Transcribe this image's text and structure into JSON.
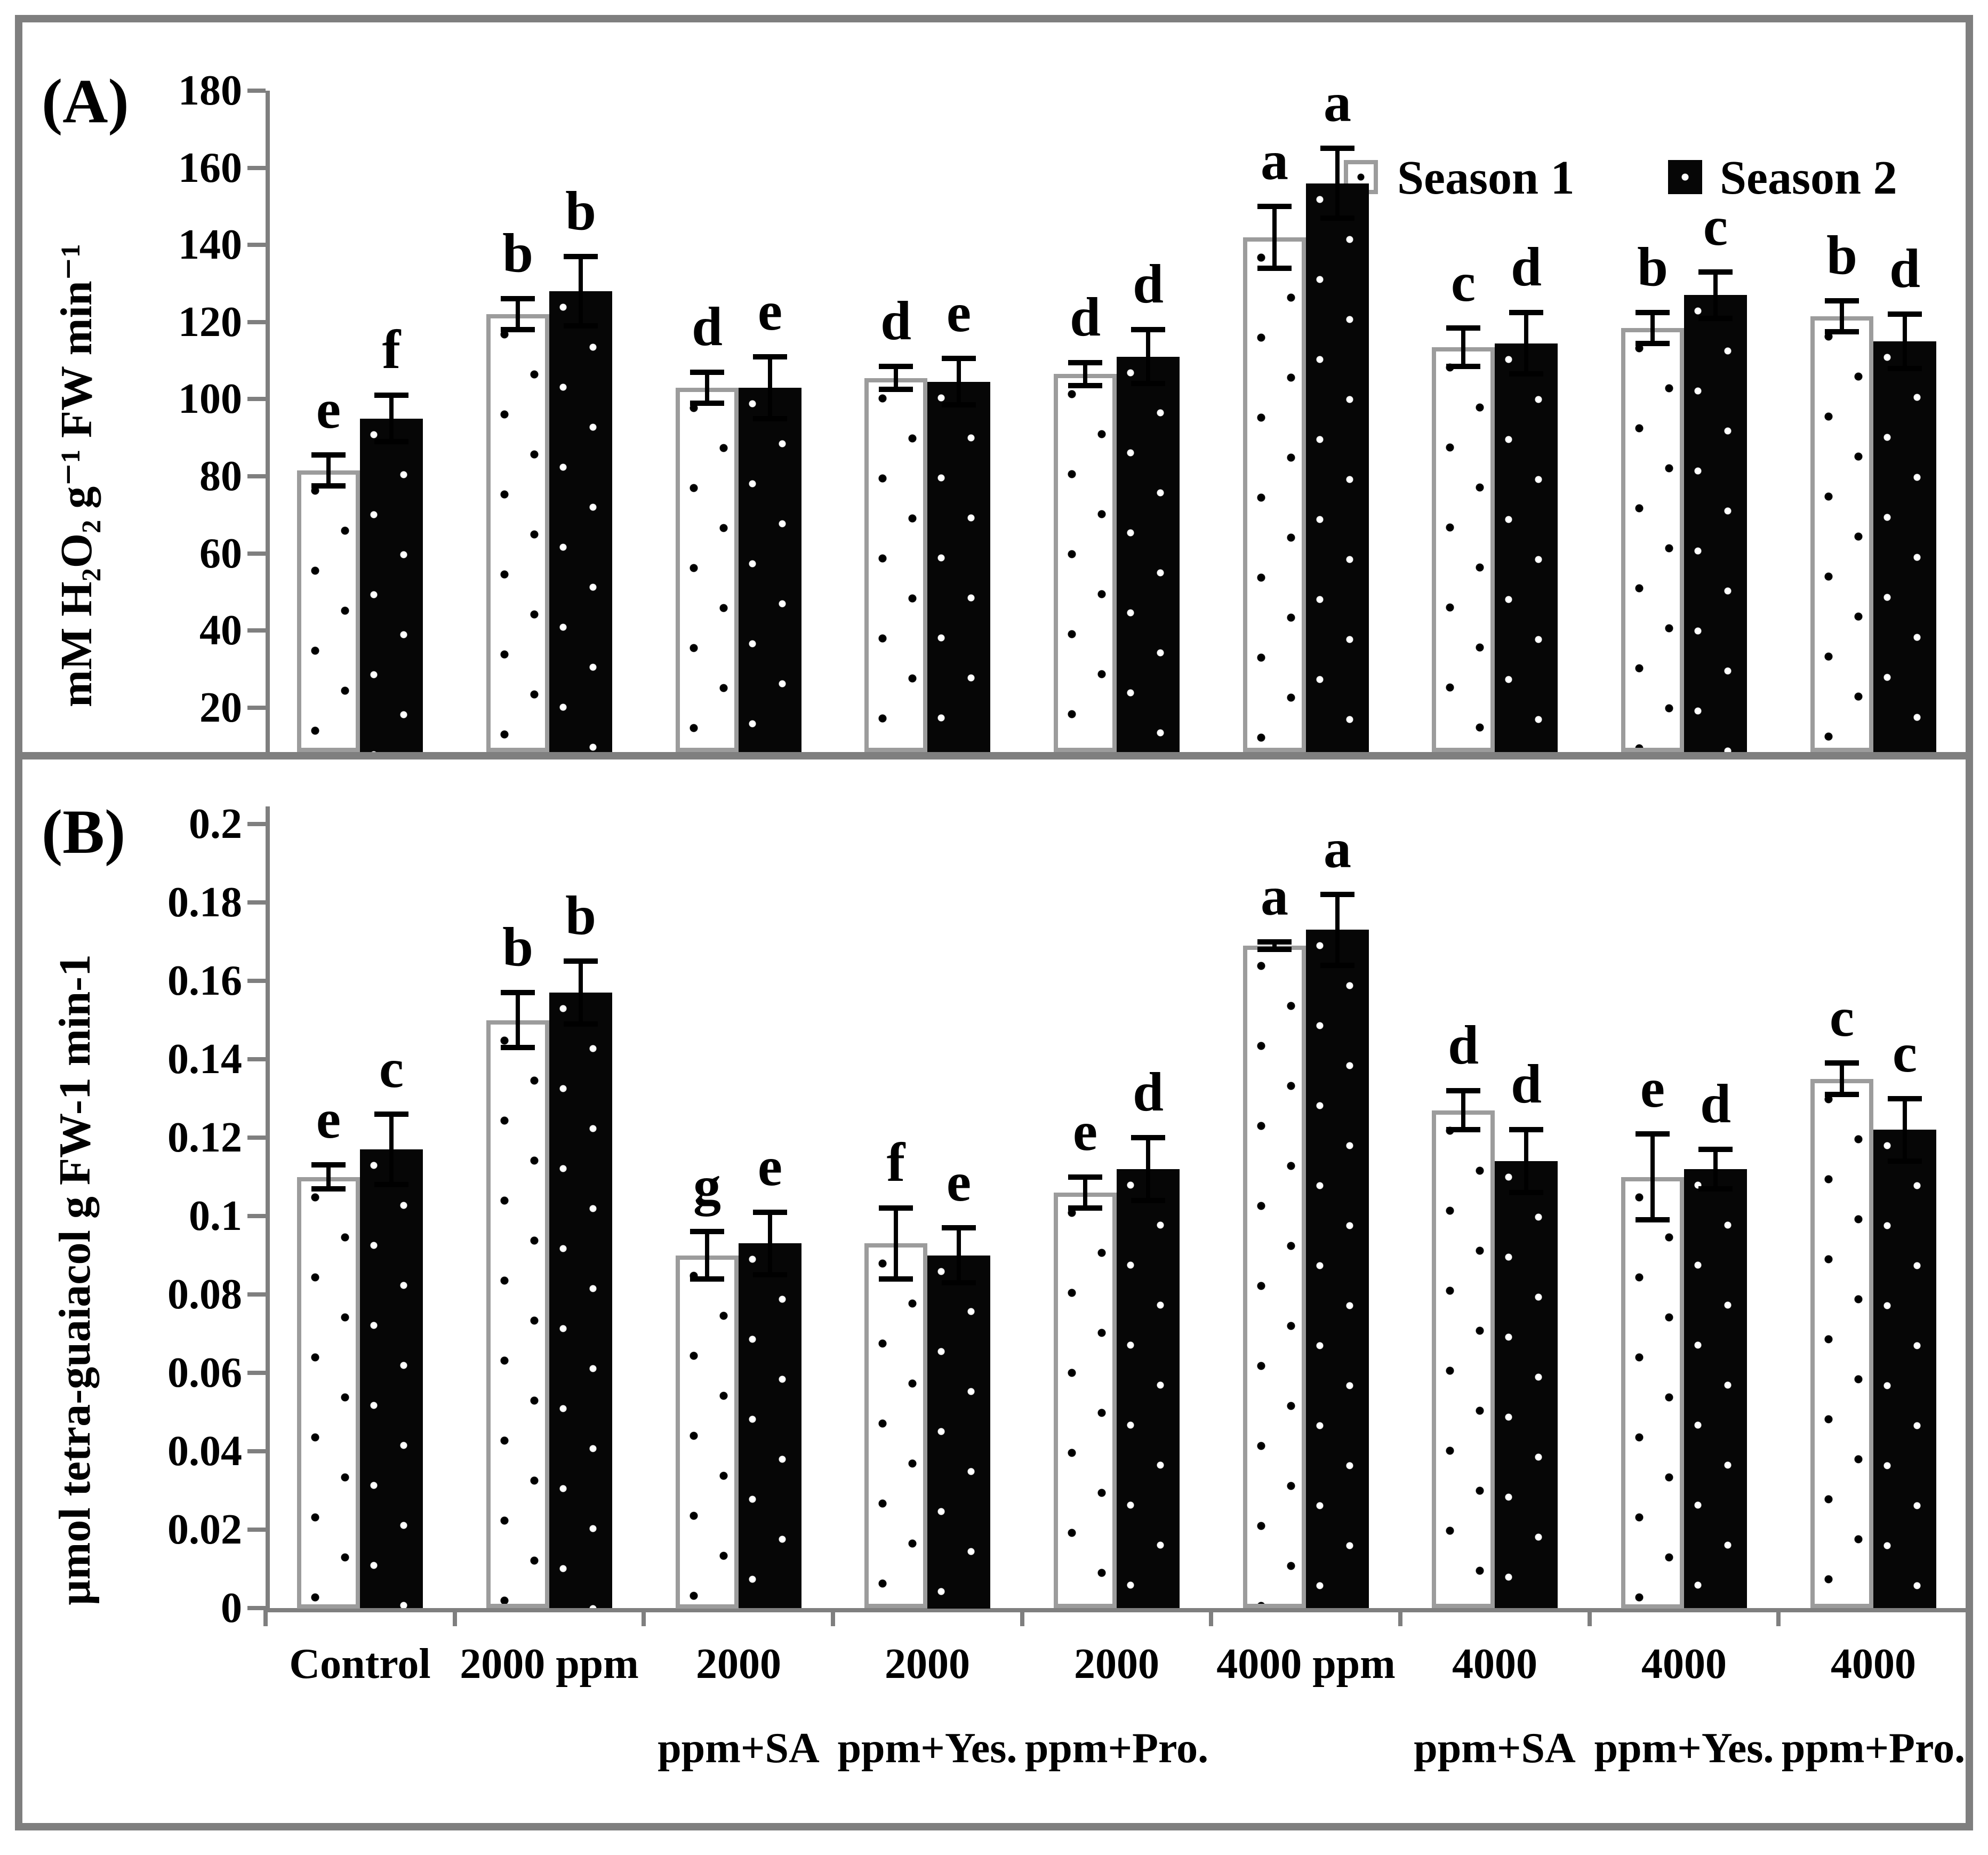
{
  "figure": {
    "frame_color": "#7f7f7f",
    "background": "#ffffff"
  },
  "legend": {
    "items": [
      {
        "label": "Season 1",
        "swatch": "white-dotted-bar"
      },
      {
        "label": "Season 2",
        "swatch": "black-dotted-bar"
      }
    ]
  },
  "chart_data": [
    {
      "id": "A",
      "type": "bar",
      "panel_label": "(A)",
      "ylabel": "mM H₂O₂ g⁻¹ FW min⁻¹",
      "ylim": [
        10,
        180
      ],
      "yticks": [
        {
          "v": 180,
          "label": "180"
        },
        {
          "v": 160,
          "label": "160"
        },
        {
          "v": 140,
          "label": "140"
        },
        {
          "v": 120,
          "label": "120"
        },
        {
          "v": 100,
          "label": "100"
        },
        {
          "v": 80,
          "label": "80"
        },
        {
          "v": 60,
          "label": "60"
        },
        {
          "v": 40,
          "label": "40"
        },
        {
          "v": 20,
          "label": "20"
        }
      ],
      "grid": false,
      "legend_position": "top-right",
      "categories": [
        "Control",
        "2000 ppm",
        "2000 ppm+SA",
        "2000 ppm+Yes.",
        "2000 ppm+Pro.",
        "4000 ppm",
        "4000 ppm+SA",
        "4000 ppm+Yes.",
        "4000 ppm+Pro."
      ],
      "series": [
        {
          "name": "Season 1",
          "values": [
            81.5,
            122,
            103,
            105.5,
            106.5,
            142,
            113.5,
            118.5,
            121.5
          ],
          "errors": [
            4,
            4,
            4,
            3,
            3,
            8,
            5,
            4,
            4
          ],
          "sig_letters": [
            "e",
            "b",
            "d",
            "d",
            "d",
            "a",
            "c",
            "b",
            "b"
          ]
        },
        {
          "name": "Season 2",
          "values": [
            95,
            128,
            103,
            104.5,
            111,
            156,
            114.5,
            127,
            115
          ],
          "errors": [
            6,
            9,
            8,
            6,
            7,
            9,
            8,
            6,
            7
          ],
          "sig_letters": [
            "f",
            "b",
            "e",
            "e",
            "d",
            "a",
            "d",
            "c",
            "d"
          ]
        }
      ]
    },
    {
      "id": "B",
      "type": "bar",
      "panel_label": "(B)",
      "ylabel": "µmol tetra-guaiacol g FW-1 min-1",
      "ylim": [
        0,
        0.2
      ],
      "yticks": [
        {
          "v": 0.2,
          "label": "0.2"
        },
        {
          "v": 0.18,
          "label": "0.18"
        },
        {
          "v": 0.16,
          "label": "0.16"
        },
        {
          "v": 0.14,
          "label": "0.14"
        },
        {
          "v": 0.12,
          "label": "0.12"
        },
        {
          "v": 0.1,
          "label": "0.1"
        },
        {
          "v": 0.08,
          "label": "0.08"
        },
        {
          "v": 0.06,
          "label": "0.06"
        },
        {
          "v": 0.04,
          "label": "0.04"
        },
        {
          "v": 0.02,
          "label": "0.02"
        },
        {
          "v": 0,
          "label": "0"
        }
      ],
      "grid": false,
      "categories": [
        "Control",
        "2000 ppm",
        "2000 ppm+SA",
        "2000 ppm+Yes.",
        "2000 ppm+Pro.",
        "4000 ppm",
        "4000 ppm+SA",
        "4000 ppm+Yes.",
        "4000 ppm+Pro."
      ],
      "category_label_lines": [
        [
          "Control"
        ],
        [
          "2000 ppm"
        ],
        [
          "2000",
          "ppm+SA"
        ],
        [
          "2000",
          "ppm+Yes."
        ],
        [
          "2000",
          "ppm+Pro."
        ],
        [
          "4000 ppm"
        ],
        [
          "4000",
          "ppm+SA"
        ],
        [
          "4000",
          "ppm+Yes."
        ],
        [
          "4000",
          "ppm+Pro."
        ]
      ],
      "series": [
        {
          "name": "Season 1",
          "values": [
            0.11,
            0.15,
            0.09,
            0.093,
            0.106,
            0.169,
            0.127,
            0.11,
            0.135
          ],
          "errors": [
            0.003,
            0.007,
            0.006,
            0.009,
            0.004,
            0.001,
            0.005,
            0.011,
            0.004
          ],
          "sig_letters": [
            "e",
            "b",
            "g",
            "f",
            "e",
            "a",
            "d",
            "e",
            "c"
          ]
        },
        {
          "name": "Season 2",
          "values": [
            0.117,
            0.157,
            0.093,
            0.09,
            0.112,
            0.173,
            0.114,
            0.112,
            0.122
          ],
          "errors": [
            0.009,
            0.008,
            0.008,
            0.007,
            0.008,
            0.009,
            0.008,
            0.005,
            0.008
          ],
          "sig_letters": [
            "c",
            "b",
            "e",
            "e",
            "d",
            "a",
            "d",
            "d",
            "c"
          ]
        }
      ]
    }
  ]
}
